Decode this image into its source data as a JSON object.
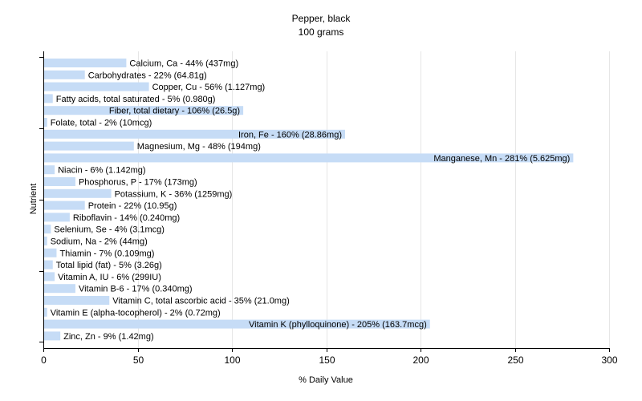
{
  "chart_data": {
    "type": "bar",
    "orientation": "horizontal",
    "title": "Pepper, black",
    "subtitle": "100 grams",
    "xlabel": "% Daily Value",
    "ylabel": "Nutrient",
    "xlim": [
      0,
      300
    ],
    "xticks": [
      0,
      50,
      100,
      150,
      200,
      250,
      300
    ],
    "grid": true,
    "bar_color": "#c6dcf6",
    "categories": [
      "Calcium, Ca",
      "Carbohydrates",
      "Copper, Cu",
      "Fatty acids, total saturated",
      "Fiber, total dietary",
      "Folate, total",
      "Iron, Fe",
      "Magnesium, Mg",
      "Manganese, Mn",
      "Niacin",
      "Phosphorus, P",
      "Potassium, K",
      "Protein",
      "Riboflavin",
      "Selenium, Se",
      "Sodium, Na",
      "Thiamin",
      "Total lipid (fat)",
      "Vitamin A, IU",
      "Vitamin B-6",
      "Vitamin C, total ascorbic acid",
      "Vitamin E (alpha-tocopherol)",
      "Vitamin K (phylloquinone)",
      "Zinc, Zn"
    ],
    "values": [
      44,
      22,
      56,
      5,
      106,
      2,
      160,
      48,
      281,
      6,
      17,
      36,
      22,
      14,
      4,
      2,
      7,
      5,
      6,
      17,
      35,
      2,
      205,
      9
    ],
    "labels": [
      "Calcium, Ca - 44% (437mg)",
      "Carbohydrates - 22% (64.81g)",
      "Copper, Cu - 56% (1.127mg)",
      "Fatty acids, total saturated - 5% (0.980g)",
      "Fiber, total dietary - 106% (26.5g)",
      "Folate, total - 2% (10mcg)",
      "Iron, Fe - 160% (28.86mg)",
      "Magnesium, Mg - 48% (194mg)",
      "Manganese, Mn - 281% (5.625mg)",
      "Niacin - 6% (1.142mg)",
      "Phosphorus, P - 17% (173mg)",
      "Potassium, K - 36% (1259mg)",
      "Protein - 22% (10.95g)",
      "Riboflavin - 14% (0.240mg)",
      "Selenium, Se - 4% (3.1mcg)",
      "Sodium, Na - 2% (44mg)",
      "Thiamin - 7% (0.109mg)",
      "Total lipid (fat) - 5% (3.26g)",
      "Vitamin A, IU - 6% (299IU)",
      "Vitamin B-6 - 17% (0.340mg)",
      "Vitamin C, total ascorbic acid - 35% (21.0mg)",
      "Vitamin E (alpha-tocopherol) - 2% (0.72mg)",
      "Vitamin K (phylloquinone) - 205% (163.7mcg)",
      "Zinc, Zn - 9% (1.42mg)"
    ]
  }
}
